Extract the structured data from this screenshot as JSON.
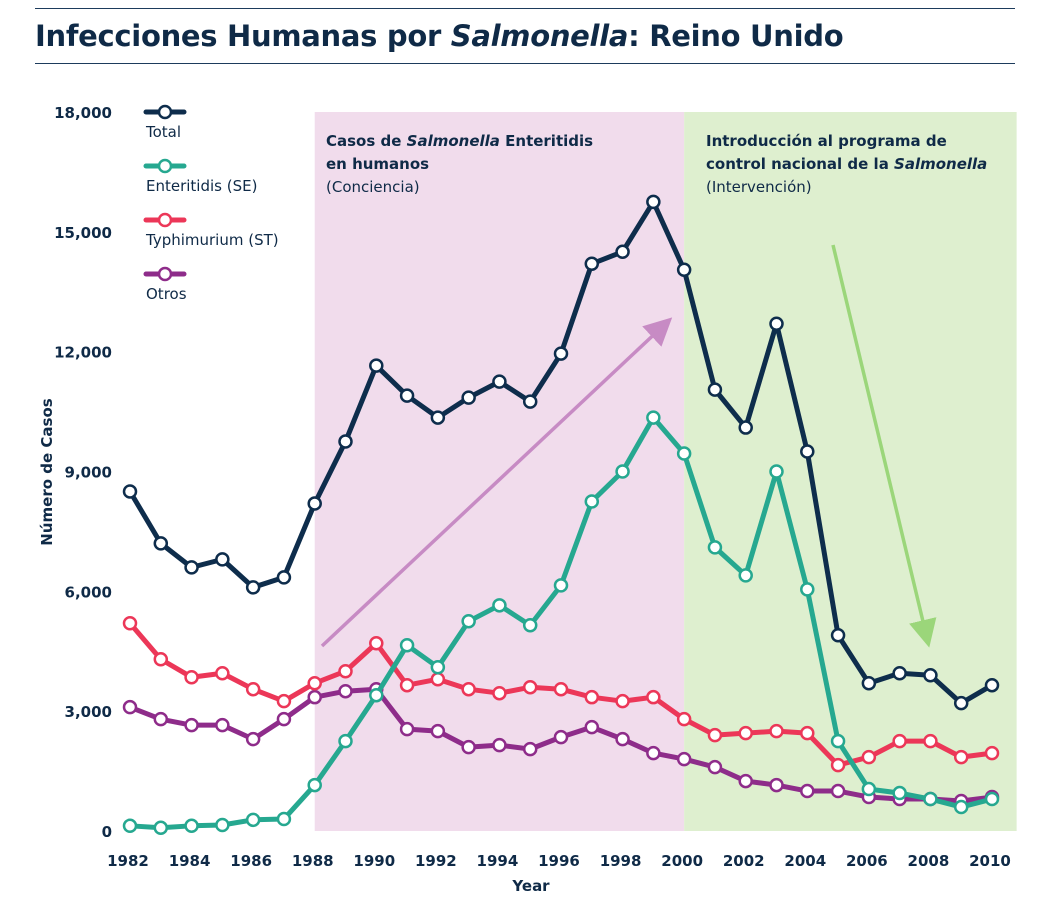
{
  "title": {
    "prefix": "Infecciones Humanas por ",
    "italic": "Salmonella",
    "suffix": ": Reino Unido"
  },
  "colors": {
    "total": "#0e2d4c",
    "se": "#26a890",
    "st": "#ec3758",
    "otros": "#8e2c8a",
    "awareness_band": "#f1dcec",
    "intervention_band": "#deefcf",
    "awareness_arrow": "#c78bc4",
    "intervention_arrow": "#9bd67a"
  },
  "annotations": {
    "awareness": {
      "line1_prefix": "Casos de ",
      "line1_italic": "Salmonella",
      "line1_suffix": " Enteritidis",
      "line2": "en humanos",
      "line3": "(Conciencia)",
      "range": [
        1988,
        2000
      ]
    },
    "intervention": {
      "line1": "Introducción al programa de",
      "line2_prefix": "control nacional de la ",
      "line2_italic": "Salmonella",
      "line3": "(Intervención)",
      "range": [
        2000,
        2010.8
      ]
    }
  },
  "chart_data": {
    "type": "line",
    "title": "Infecciones Humanas por Salmonella: Reino Unido",
    "xlabel": "Year",
    "ylabel": "Número de Casos",
    "xlim": [
      1981.9,
      2010.8
    ],
    "ylim": [
      0,
      18000
    ],
    "x_ticks": [
      "1982",
      "1984",
      "1986",
      "1988",
      "1990",
      "1992",
      "1994",
      "1996",
      "1998",
      "2000",
      "2002",
      "2004",
      "2006",
      "2008",
      "2010"
    ],
    "y_ticks": [
      "0",
      "3,000",
      "6,000",
      "9,000",
      "12,000",
      "15,000",
      "18,000"
    ],
    "legend_position": "top-left",
    "x": [
      1982,
      1983,
      1984,
      1985,
      1986,
      1987,
      1988,
      1989,
      1990,
      1991,
      1992,
      1993,
      1994,
      1995,
      1996,
      1997,
      1998,
      1999,
      2000,
      2001,
      2002,
      2003,
      2004,
      2005,
      2006,
      2007,
      2008,
      2009,
      2010
    ],
    "series": [
      {
        "key": "total",
        "name": "Total",
        "values": [
          8500,
          7200,
          6600,
          6800,
          6100,
          6350,
          8200,
          9750,
          11650,
          10900,
          10350,
          10850,
          11250,
          10750,
          11950,
          14200,
          14500,
          15750,
          14050,
          11050,
          10100,
          12700,
          9500,
          4900,
          3700,
          3950,
          3900,
          3200,
          3650
        ]
      },
      {
        "key": "se",
        "name": "Enteritidis (SE)",
        "values": [
          130,
          80,
          130,
          150,
          280,
          300,
          1150,
          2250,
          3400,
          4650,
          4100,
          5250,
          5650,
          5150,
          6150,
          8250,
          9000,
          10350,
          9450,
          7100,
          6400,
          9000,
          6050,
          2250,
          1050,
          950,
          800,
          600,
          800
        ]
      },
      {
        "key": "st",
        "name": "Typhimurium (ST)",
        "values": [
          5200,
          4300,
          3850,
          3950,
          3550,
          3250,
          3700,
          4000,
          4700,
          3650,
          3800,
          3550,
          3450,
          3600,
          3550,
          3350,
          3250,
          3350,
          2800,
          2400,
          2450,
          2500,
          2450,
          1650,
          1850,
          2250,
          2250,
          1850,
          1950
        ]
      },
      {
        "key": "otros",
        "name": "Otros",
        "values": [
          3100,
          2800,
          2650,
          2650,
          2300,
          2800,
          3350,
          3500,
          3550,
          2550,
          2500,
          2100,
          2150,
          2050,
          2350,
          2600,
          2300,
          1950,
          1800,
          1600,
          1250,
          1150,
          1000,
          1000,
          850,
          800,
          800,
          750,
          850
        ]
      }
    ]
  }
}
